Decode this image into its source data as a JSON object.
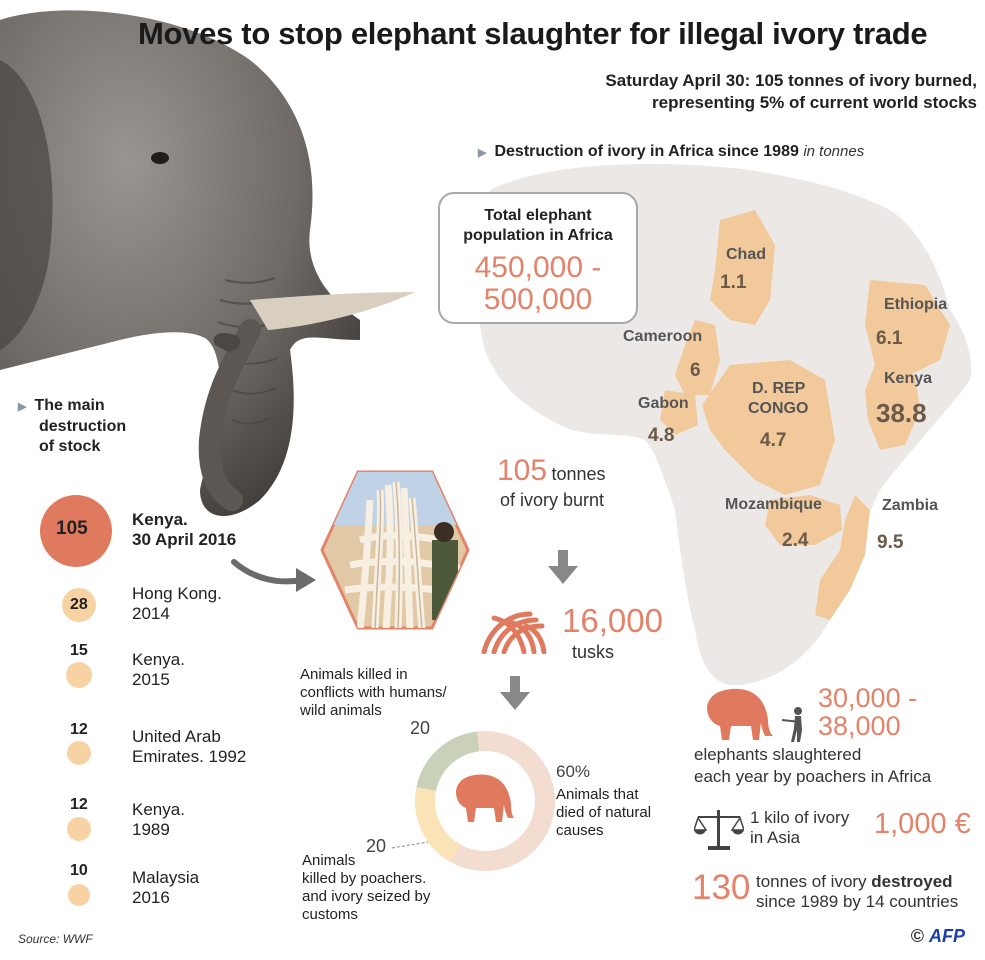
{
  "title": "Moves to stop elephant slaughter for illegal ivory trade",
  "subtitle": {
    "line1": "Saturday April 30: 105 tonnes of ivory burned,",
    "line2": "representing 5% of current world stocks"
  },
  "map_section": {
    "heading": "Destruction of ivory in Africa since 1989",
    "unit": "in tonnes",
    "population_box": {
      "label_line1": "Total elephant",
      "label_line2": "population in Africa",
      "value_line1": "450,000 -",
      "value_line2": "500,000"
    },
    "countries": [
      {
        "name": "Chad",
        "value": "1.1"
      },
      {
        "name": "Ethiopia",
        "value": "6.1"
      },
      {
        "name": "Cameroon",
        "value": "6"
      },
      {
        "name": "Kenya",
        "value": "38.8"
      },
      {
        "name": "Gabon",
        "value": "4.8"
      },
      {
        "name": "D. REP",
        "name2": "CONGO",
        "value": "4.7"
      },
      {
        "name": "Mozambique",
        "value": "2.4"
      },
      {
        "name": "Zambia",
        "value": "9.5"
      }
    ],
    "colors": {
      "map_land": "#ece8e6",
      "country_fill": "#f1c99b",
      "accent": "#e2836a"
    }
  },
  "stock_section": {
    "heading_line1": "The main",
    "heading_line2": "destruction",
    "heading_line3": "of stock",
    "items": [
      {
        "value": "105",
        "line1": "Kenya.",
        "line2": "30 April 2016"
      },
      {
        "value": "28",
        "line1": "Hong Kong.",
        "line2": "2014"
      },
      {
        "value": "15",
        "line1": "Kenya.",
        "line2": "2015"
      },
      {
        "value": "12",
        "line1": "United Arab",
        "line2": "Emirates. 1992"
      },
      {
        "value": "12",
        "line1": "Kenya.",
        "line2": "1989"
      },
      {
        "value": "10",
        "line1": "Malaysia",
        "line2": "2016"
      }
    ]
  },
  "burn": {
    "amount": "105",
    "unit": "tonnes",
    "label": "of ivory burnt",
    "tusks_value": "16,000",
    "tusks_label": "tusks"
  },
  "causes": {
    "conflict_label_line1": "Animals killed in",
    "conflict_label_line2": "conflicts with humans/",
    "conflict_label_line3": "wild animals",
    "conflict_value": "20",
    "natural_value": "60%",
    "natural_label_line1": "Animals that",
    "natural_label_line2": "died of natural",
    "natural_label_line3": "causes",
    "poacher_value": "20",
    "poacher_label_line1": "Animals",
    "poacher_label_line2": "killed by poachers.",
    "poacher_label_line3": "and ivory seized by",
    "poacher_label_line4": "customs",
    "shares": [
      {
        "name": "conflicts",
        "value": 20,
        "color": "#c9d1b8"
      },
      {
        "name": "natural",
        "value": 60,
        "color": "#f2ddd0"
      },
      {
        "name": "poachers",
        "value": 20,
        "color": "#fbe3b8"
      }
    ]
  },
  "facts": {
    "slaughter_value_line1": "30,000 -",
    "slaughter_value_line2": "38,000",
    "slaughter_label_line1": "elephants slaughtered",
    "slaughter_label_line2": "each year by poachers in Africa",
    "price_label_line1": "1 kilo of ivory",
    "price_label_line2": "in Asia",
    "price_value": "1,000 €",
    "destroyed_value": "130",
    "destroyed_line1_a": "tonnes of ivory ",
    "destroyed_line1_b": "destroyed",
    "destroyed_line2": "since 1989 by 14 countries"
  },
  "footer": {
    "source": "Source: WWF",
    "copyright": "©",
    "agency": "AFP"
  }
}
